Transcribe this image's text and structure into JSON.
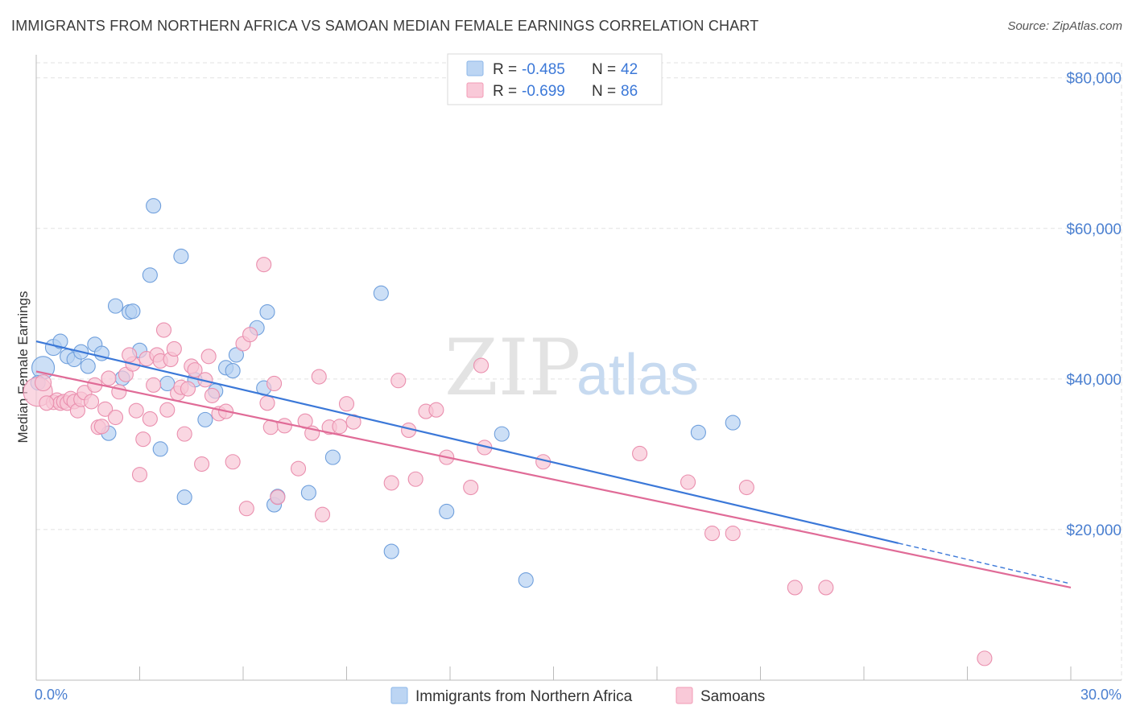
{
  "header": {
    "title": "IMMIGRANTS FROM NORTHERN AFRICA VS SAMOAN MEDIAN FEMALE EARNINGS CORRELATION CHART",
    "source": "Source: ZipAtlas.com"
  },
  "watermark": {
    "zip": "ZIP",
    "atlas": "atlas"
  },
  "legend": {
    "rows": [
      {
        "r_label": "R =",
        "r_value": "-0.485",
        "n_label": "N =",
        "n_value": "42",
        "color": "#8db7e8",
        "fill": "#bcd5f3"
      },
      {
        "r_label": "R =",
        "r_value": "-0.699",
        "n_label": "N =",
        "n_value": "86",
        "color": "#f29bb6",
        "fill": "#f9c9d8"
      }
    ]
  },
  "colors": {
    "blue_fill": "#b7d1f2",
    "blue_stroke": "#6f9fdc",
    "blue_line": "#3b78d8",
    "pink_fill": "#f8c6d6",
    "pink_stroke": "#ea8fae",
    "pink_line": "#e06b97",
    "grid": "#e2e2e2",
    "tick_label": "#4a7fd0"
  },
  "chart_data": {
    "type": "scatter",
    "title": "IMMIGRANTS FROM NORTHERN AFRICA VS SAMOAN MEDIAN FEMALE EARNINGS CORRELATION CHART",
    "xlabel": "",
    "ylabel": "Median Female Earnings",
    "xlim": [
      0,
      30
    ],
    "ylim": [
      0,
      82000
    ],
    "x_tick_labels": [
      "0.0%",
      "30.0%"
    ],
    "y_ticks": [
      20000,
      40000,
      60000,
      80000
    ],
    "y_tick_labels": [
      "$20,000",
      "$40,000",
      "$60,000",
      "$80,000"
    ],
    "grid": true,
    "legend_position": "top-center",
    "series": [
      {
        "name": "Immigrants from Northern Africa",
        "color": "#3b78d8",
        "trend": {
          "x": [
            0,
            25
          ],
          "y": [
            45000,
            18200
          ],
          "dashed_to": [
            30,
            12800
          ]
        },
        "points": [
          [
            0.2,
            41500,
            14
          ],
          [
            0.5,
            44200,
            10
          ],
          [
            0.7,
            45000,
            9
          ],
          [
            0.9,
            43000,
            9
          ],
          [
            1.1,
            42600,
            9
          ],
          [
            1.3,
            43600,
            9
          ],
          [
            1.5,
            41700,
            9
          ],
          [
            1.7,
            44600,
            9
          ],
          [
            1.9,
            43400,
            9
          ],
          [
            2.1,
            32800,
            9
          ],
          [
            2.3,
            49700,
            9
          ],
          [
            2.5,
            40100,
            9
          ],
          [
            2.7,
            48900,
            9
          ],
          [
            2.8,
            49000,
            9
          ],
          [
            3.0,
            43800,
            9
          ],
          [
            3.3,
            53800,
            9
          ],
          [
            3.4,
            63000,
            9
          ],
          [
            3.6,
            30700,
            9
          ],
          [
            3.8,
            39400,
            9
          ],
          [
            4.2,
            56300,
            9
          ],
          [
            4.3,
            24300,
            9
          ],
          [
            4.6,
            39900,
            9
          ],
          [
            4.9,
            34600,
            9
          ],
          [
            5.2,
            38400,
            9
          ],
          [
            5.5,
            41500,
            9
          ],
          [
            5.7,
            41100,
            9
          ],
          [
            5.8,
            43200,
            9
          ],
          [
            6.6,
            38800,
            9
          ],
          [
            6.4,
            46800,
            9
          ],
          [
            6.7,
            48900,
            9
          ],
          [
            6.9,
            23300,
            9
          ],
          [
            7.0,
            24400,
            9
          ],
          [
            7.9,
            24900,
            9
          ],
          [
            8.6,
            29600,
            9
          ],
          [
            10.0,
            51400,
            9
          ],
          [
            10.3,
            17100,
            9
          ],
          [
            11.9,
            22400,
            9
          ],
          [
            13.5,
            32700,
            9
          ],
          [
            14.2,
            13300,
            9
          ],
          [
            19.2,
            32900,
            9
          ],
          [
            20.2,
            34200,
            9
          ],
          [
            0.05,
            39500,
            9
          ]
        ]
      },
      {
        "name": "Samoans",
        "color": "#e06b97",
        "trend": {
          "x": [
            0,
            30
          ],
          "y": [
            41000,
            12300
          ]
        },
        "points": [
          [
            0.05,
            38300,
            18
          ],
          [
            0.2,
            39500,
            10
          ],
          [
            0.5,
            36900,
            9
          ],
          [
            0.6,
            37200,
            9
          ],
          [
            0.7,
            36800,
            9
          ],
          [
            0.8,
            37000,
            9
          ],
          [
            0.9,
            36800,
            9
          ],
          [
            1.0,
            37400,
            9
          ],
          [
            1.1,
            37000,
            9
          ],
          [
            1.2,
            35800,
            9
          ],
          [
            1.3,
            37300,
            9
          ],
          [
            1.4,
            38200,
            9
          ],
          [
            1.6,
            37000,
            9
          ],
          [
            1.7,
            39200,
            9
          ],
          [
            1.8,
            33600,
            9
          ],
          [
            1.9,
            33700,
            9
          ],
          [
            2.0,
            36000,
            9
          ],
          [
            2.1,
            40100,
            9
          ],
          [
            2.3,
            34900,
            9
          ],
          [
            2.4,
            38300,
            9
          ],
          [
            2.6,
            40600,
            9
          ],
          [
            2.8,
            42000,
            9
          ],
          [
            2.7,
            43200,
            9
          ],
          [
            2.9,
            35800,
            9
          ],
          [
            3.0,
            27300,
            9
          ],
          [
            3.1,
            32000,
            9
          ],
          [
            3.2,
            42700,
            9
          ],
          [
            3.3,
            34700,
            9
          ],
          [
            3.4,
            39200,
            9
          ],
          [
            3.5,
            43200,
            9
          ],
          [
            3.6,
            42400,
            9
          ],
          [
            3.7,
            46500,
            9
          ],
          [
            3.8,
            35900,
            9
          ],
          [
            3.9,
            42600,
            9
          ],
          [
            4.0,
            44000,
            9
          ],
          [
            4.1,
            38100,
            9
          ],
          [
            4.2,
            38900,
            9
          ],
          [
            4.3,
            32700,
            9
          ],
          [
            4.4,
            38700,
            9
          ],
          [
            4.5,
            41700,
            9
          ],
          [
            4.6,
            41200,
            9
          ],
          [
            4.8,
            28700,
            9
          ],
          [
            4.9,
            39900,
            9
          ],
          [
            5.0,
            43000,
            9
          ],
          [
            5.1,
            37800,
            9
          ],
          [
            5.3,
            35400,
            9
          ],
          [
            5.5,
            35700,
            9
          ],
          [
            5.7,
            29000,
            9
          ],
          [
            6.0,
            44700,
            9
          ],
          [
            6.1,
            22800,
            9
          ],
          [
            6.2,
            45900,
            9
          ],
          [
            6.6,
            55200,
            9
          ],
          [
            6.7,
            36800,
            9
          ],
          [
            6.8,
            33600,
            9
          ],
          [
            6.9,
            39400,
            9
          ],
          [
            7.0,
            24300,
            9
          ],
          [
            7.2,
            33800,
            9
          ],
          [
            7.6,
            28100,
            9
          ],
          [
            7.8,
            34400,
            9
          ],
          [
            8.0,
            32800,
            9
          ],
          [
            8.2,
            40300,
            9
          ],
          [
            8.3,
            22000,
            9
          ],
          [
            8.5,
            33600,
            9
          ],
          [
            8.8,
            33700,
            9
          ],
          [
            9.0,
            36700,
            9
          ],
          [
            9.2,
            34300,
            9
          ],
          [
            10.3,
            26200,
            9
          ],
          [
            10.5,
            39800,
            9
          ],
          [
            10.8,
            33200,
            9
          ],
          [
            11.0,
            26700,
            9
          ],
          [
            11.3,
            35700,
            9
          ],
          [
            11.6,
            35900,
            9
          ],
          [
            11.9,
            29600,
            9
          ],
          [
            12.6,
            25600,
            9
          ],
          [
            12.9,
            41800,
            9
          ],
          [
            13.0,
            30900,
            9
          ],
          [
            14.7,
            29000,
            9
          ],
          [
            17.5,
            30100,
            9
          ],
          [
            18.9,
            26300,
            9
          ],
          [
            19.6,
            19500,
            9
          ],
          [
            20.2,
            19500,
            9
          ],
          [
            20.6,
            25600,
            9
          ],
          [
            22.0,
            12300,
            9
          ],
          [
            22.9,
            12300,
            9
          ],
          [
            27.5,
            2900,
            9
          ],
          [
            0.3,
            36800,
            9
          ]
        ]
      }
    ]
  }
}
